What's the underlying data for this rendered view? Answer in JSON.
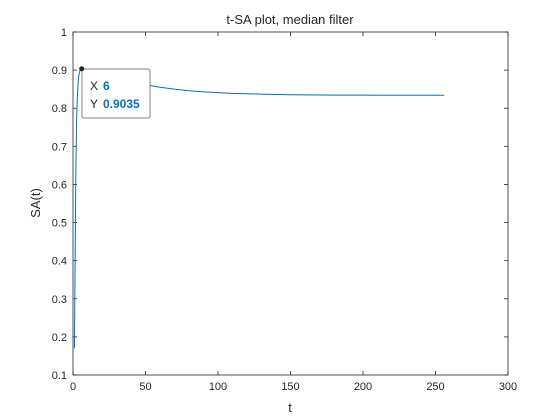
{
  "chart_data": {
    "type": "line",
    "title": "t-SA plot, median filter",
    "xlabel": "t",
    "ylabel": "SA(t)",
    "xlim": [
      0,
      300
    ],
    "ylim": [
      0.1,
      1
    ],
    "xticks": [
      0,
      50,
      100,
      150,
      200,
      250,
      300
    ],
    "yticks": [
      0.1,
      0.2,
      0.3,
      0.4,
      0.5,
      0.6,
      0.7,
      0.8,
      0.9,
      1
    ],
    "xtick_labels": [
      "0",
      "50",
      "100",
      "150",
      "200",
      "250",
      "300"
    ],
    "ytick_labels": [
      "0.1",
      "0.2",
      "0.3",
      "0.4",
      "0.5",
      "0.6",
      "0.7",
      "0.8",
      "0.9",
      "1"
    ],
    "grid": false,
    "line_color": "#0072BD",
    "series": [
      {
        "x": [
          1,
          1.5,
          2,
          2.5,
          3,
          3.5,
          4,
          4.5,
          5,
          5.5,
          6,
          8,
          10,
          15,
          20,
          25,
          30,
          40,
          50,
          60,
          70,
          80,
          90,
          100,
          110,
          120,
          130,
          140,
          150,
          160,
          180,
          200,
          220,
          240,
          256
        ],
        "y": [
          0.17,
          0.42,
          0.65,
          0.77,
          0.83,
          0.865,
          0.885,
          0.895,
          0.9,
          0.902,
          0.9035,
          0.901,
          0.898,
          0.893,
          0.888,
          0.882,
          0.877,
          0.869,
          0.862,
          0.855,
          0.85,
          0.846,
          0.843,
          0.841,
          0.839,
          0.838,
          0.837,
          0.836,
          0.8355,
          0.835,
          0.8345,
          0.8345,
          0.834,
          0.834,
          0.834
        ]
      }
    ],
    "datatip": {
      "x": 6,
      "y": 0.9035,
      "x_key": "X",
      "y_key": "Y",
      "x_value": "6",
      "y_value": "0.9035"
    }
  }
}
